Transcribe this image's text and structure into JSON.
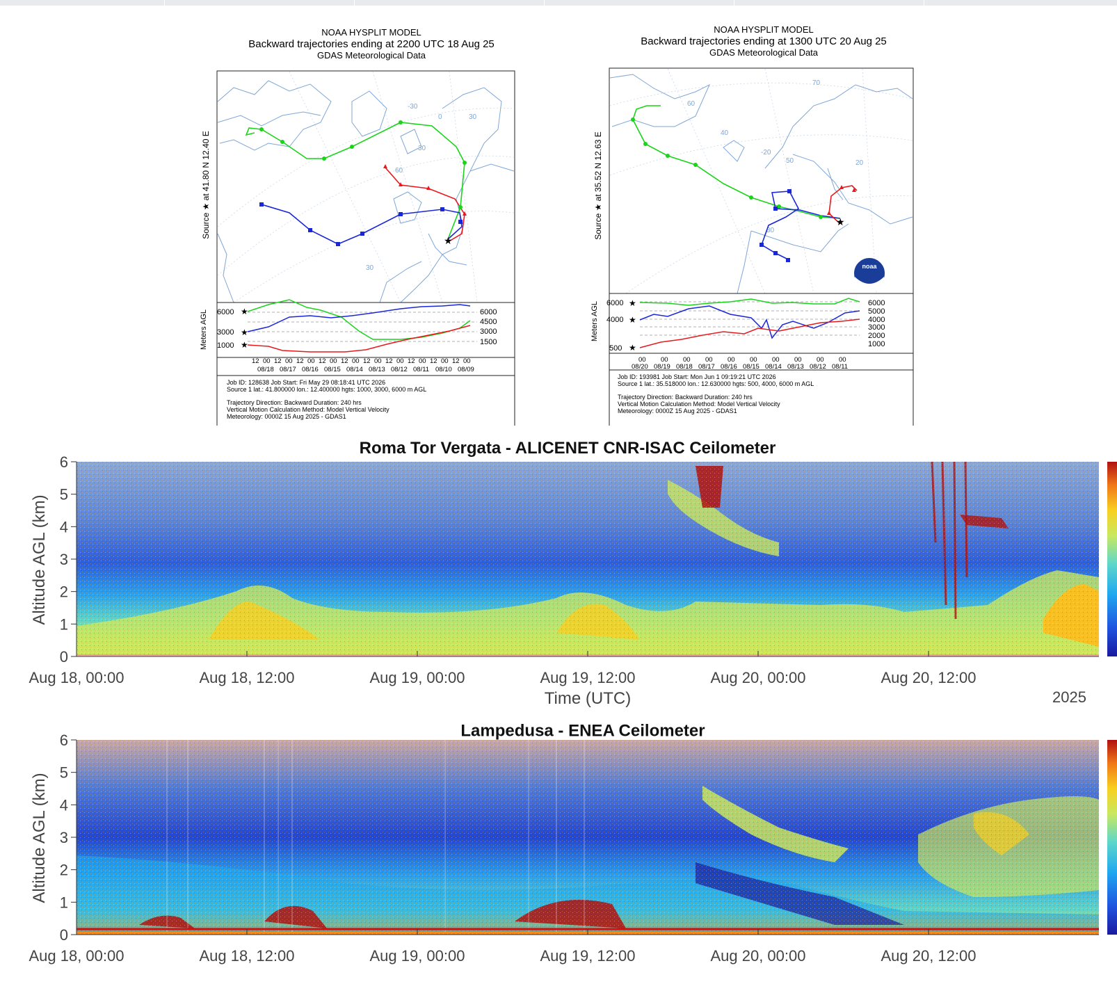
{
  "hysplit": [
    {
      "model": "NOAA HYSPLIT MODEL",
      "title": "Backward trajectories ending at 2200 UTC 18 Aug 25",
      "data_source": "GDAS Meteorological Data",
      "side_label": "Source ★ at 41.80 N 12.40 E",
      "height_axis_label": "Meters AGL",
      "left_ticks": [
        "6000",
        "3000",
        "1000"
      ],
      "right_ticks": [
        "6000",
        "4500",
        "3000",
        "1500"
      ],
      "time_hours": [
        "12",
        "00",
        "12",
        "00",
        "12",
        "00",
        "12",
        "00",
        "12",
        "00",
        "12",
        "00",
        "12",
        "00",
        "12",
        "00",
        "12",
        "00",
        "12",
        "00"
      ],
      "time_dates": [
        "08/18",
        "08/17",
        "08/16",
        "08/15",
        "08/14",
        "08/13",
        "08/12",
        "08/11",
        "08/10",
        "08/09"
      ],
      "grid_labels": [
        "-30",
        "0",
        "30",
        "30",
        "60",
        "30"
      ],
      "footer": [
        "Job ID: 128638                       Job Start: Fri May 29 08:18:41 UTC 2026",
        "Source 1 lat.: 41.800000  lon.: 12.400000  hgts: 1000, 3000, 6000 m AGL",
        "Trajectory Direction: Backward     Duration: 240 hrs",
        "Vertical Motion Calculation Method:      Model Vertical Velocity",
        "Meteorology: 0000Z 15 Aug 2025 - GDAS1"
      ]
    },
    {
      "model": "NOAA HYSPLIT MODEL",
      "title": "Backward trajectories ending at 1300 UTC 20 Aug 25",
      "data_source": "GDAS Meteorological Data",
      "side_label": "Source ★ at 35.52 N 12.63 E",
      "height_axis_label": "Meters AGL",
      "left_ticks": [
        "6000",
        "4000",
        "500"
      ],
      "right_ticks": [
        "6000",
        "5000",
        "4000",
        "3000",
        "2000",
        "1000"
      ],
      "time_hours": [
        "00",
        "00",
        "00",
        "00",
        "00",
        "00",
        "00",
        "00",
        "00",
        "00"
      ],
      "time_dates": [
        "08/20",
        "08/19",
        "08/18",
        "08/17",
        "08/16",
        "08/15",
        "08/14",
        "08/13",
        "08/12",
        "08/11"
      ],
      "grid_labels": [
        "70",
        "60",
        "40",
        "-20",
        "50",
        "30",
        "20"
      ],
      "logo_text": "noaa",
      "footer": [
        "Job ID: 193981                        Job Start: Mon Jun  1 09:19:21 UTC 2026",
        "Source 1 lat.: 35.518000  lon.: 12.630000  hgts: 500, 4000, 6000 m AGL",
        "Trajectory Direction: Backward     Duration: 240 hrs",
        "Vertical Motion Calculation Method:      Model Vertical Velocity",
        "Meteorology: 0000Z 15 Aug 2025 - GDAS1"
      ]
    }
  ],
  "chart_data": [
    {
      "type": "heatmap",
      "title": "Roma Tor Vergata - ALICENET CNR-ISAC Ceilometer",
      "ylabel": "Altitude AGL (km)",
      "xlabel": "Time (UTC)",
      "year_label": "2025",
      "ylim": [
        0,
        6
      ],
      "yticks": [
        "0",
        "1",
        "2",
        "3",
        "4",
        "5",
        "6"
      ],
      "xticks": [
        "Aug 18, 00:00",
        "Aug 18, 12:00",
        "Aug 19, 00:00",
        "Aug 19, 12:00",
        "Aug 20, 00:00",
        "Aug 20, 12:00"
      ],
      "xtick_hours": [
        0,
        12,
        24,
        36,
        48,
        60
      ],
      "xlim_hours": [
        0,
        72
      ],
      "colorbar": true
    },
    {
      "type": "heatmap",
      "title": "Lampedusa - ENEA Ceilometer",
      "ylabel": "Altitude AGL (km)",
      "ylim": [
        0,
        6
      ],
      "yticks": [
        "0",
        "1",
        "2",
        "3",
        "4",
        "5",
        "6"
      ],
      "xticks": [
        "Aug 18, 00:00",
        "Aug 18, 12:00",
        "Aug 19, 00:00",
        "Aug 19, 12:00",
        "Aug 20, 00:00",
        "Aug 20, 12:00"
      ],
      "xtick_hours": [
        0,
        12,
        24,
        36,
        48,
        60
      ],
      "xlim_hours": [
        0,
        72
      ],
      "colorbar": true
    }
  ],
  "colors": {
    "trajectory_low": "#e8191c",
    "trajectory_mid": "#1a27d8",
    "trajectory_high": "#19d419",
    "map_lines": "#7fa6d6",
    "colormap": [
      "#1a1aa0",
      "#1f55e0",
      "#20a8f0",
      "#60d8c8",
      "#c8e860",
      "#f8d020",
      "#f07818",
      "#b01010"
    ]
  }
}
